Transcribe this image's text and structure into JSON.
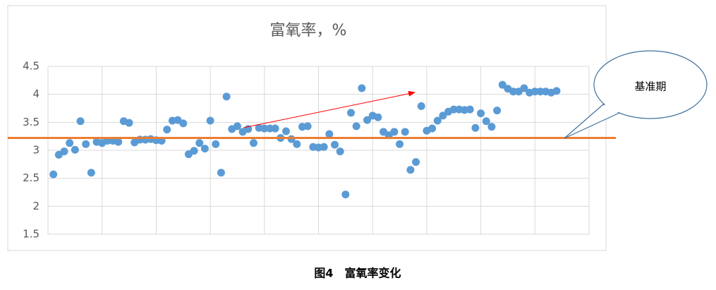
{
  "chart_data": {
    "type": "scatter",
    "title": "富氧率，%",
    "x": [
      1,
      2,
      3,
      4,
      5,
      6,
      7,
      8,
      9,
      10,
      11,
      12,
      13,
      14,
      15,
      16,
      17,
      18,
      19,
      20,
      21,
      22,
      23,
      24,
      25,
      26,
      27,
      28,
      29,
      30,
      31,
      32,
      33,
      34,
      35,
      36,
      37,
      38,
      39,
      40,
      41,
      42,
      43,
      44,
      45,
      46,
      47,
      48,
      49,
      50,
      51,
      52,
      53,
      54,
      55,
      56,
      57,
      58,
      59,
      60,
      61,
      62,
      63,
      64,
      65,
      66,
      67,
      68,
      69,
      70,
      71,
      72,
      73,
      74,
      75,
      76,
      77,
      78,
      79,
      80,
      81,
      82,
      83,
      84,
      85,
      86,
      87,
      88,
      89,
      90,
      91,
      92,
      93,
      94
    ],
    "values": [
      2.57,
      2.92,
      2.98,
      3.13,
      3.01,
      3.52,
      3.11,
      2.6,
      3.15,
      3.13,
      3.17,
      3.17,
      3.15,
      3.52,
      3.49,
      3.14,
      3.19,
      3.19,
      3.2,
      3.18,
      3.17,
      3.37,
      3.53,
      3.54,
      3.48,
      2.93,
      2.99,
      3.13,
      3.03,
      3.53,
      3.11,
      2.6,
      3.96,
      3.38,
      3.43,
      3.33,
      3.38,
      3.13,
      3.4,
      3.39,
      3.39,
      3.39,
      3.22,
      3.34,
      3.2,
      3.11,
      3.42,
      3.43,
      3.06,
      3.05,
      3.06,
      3.29,
      3.1,
      2.98,
      2.21,
      3.67,
      3.43,
      4.11,
      3.54,
      3.62,
      3.59,
      3.33,
      3.27,
      3.33,
      3.11,
      3.33,
      2.65,
      2.79,
      3.79,
      3.35,
      3.39,
      3.53,
      3.62,
      3.69,
      3.73,
      3.73,
      3.72,
      3.73,
      3.4,
      3.66,
      3.52,
      3.42,
      3.71,
      4.17,
      4.1,
      4.05,
      4.05,
      4.11,
      4.03,
      4.05,
      4.05,
      4.05,
      4.03,
      4.06
    ],
    "color": "#5b9bd5",
    "xlim": [
      0,
      100
    ],
    "xticks": [
      0,
      10,
      20,
      30,
      40,
      50,
      60,
      70,
      80,
      90,
      100
    ],
    "ylim": [
      1.5,
      4.5
    ],
    "yticks": [
      1.5,
      2,
      2.5,
      3,
      3.5,
      4,
      4.5
    ],
    "grid": true,
    "reference_line": {
      "value": 3.22,
      "color": "#ed7d31"
    },
    "annotation": "基准期"
  },
  "caption": "图4　富氧率变化"
}
